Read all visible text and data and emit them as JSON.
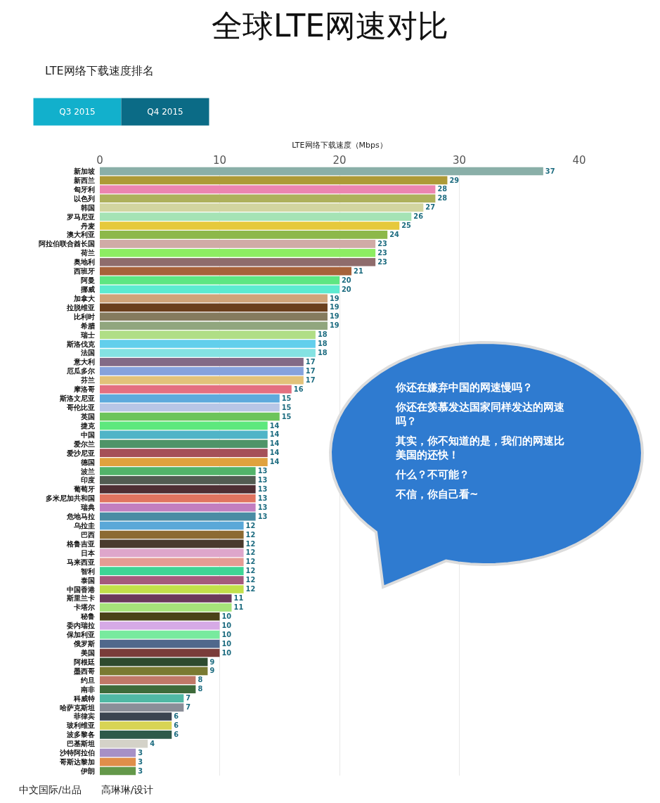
{
  "chart_data": {
    "type": "bar",
    "orientation": "horizontal",
    "title": "全球LTE网速对比",
    "subtitle": "LTE网络下载速度排名",
    "xlabel": "LTE网络下载速度（Mbps）",
    "categories": [
      "新加坡",
      "新西兰",
      "匈牙利",
      "以色列",
      "韩国",
      "罗马尼亚",
      "丹麦",
      "澳大利亚",
      "阿拉伯联合酋长国",
      "荷兰",
      "奥地利",
      "西班牙",
      "阿曼",
      "挪威",
      "加拿大",
      "拉脱维亚",
      "比利时",
      "希腊",
      "瑞士",
      "斯洛伐克",
      "法国",
      "意大利",
      "厄瓜多尔",
      "芬兰",
      "摩洛哥",
      "斯洛文尼亚",
      "哥伦比亚",
      "英国",
      "捷克",
      "中国",
      "爱尔兰",
      "爱沙尼亚",
      "德国",
      "波兰",
      "印度",
      "葡萄牙",
      "多米尼加共和国",
      "瑞典",
      "危地马拉",
      "乌拉圭",
      "巴西",
      "格鲁吉亚",
      "日本",
      "马来西亚",
      "智利",
      "泰国",
      "中国香港",
      "斯里兰卡",
      "卡塔尔",
      "秘鲁",
      "委内瑞拉",
      "保加利亚",
      "俄罗斯",
      "美国",
      "阿根廷",
      "墨西哥",
      "约旦",
      "南非",
      "科威特",
      "哈萨克斯坦",
      "菲律宾",
      "玻利维亚",
      "波多黎各",
      "巴基斯坦",
      "沙特阿拉伯",
      "哥斯达黎加",
      "伊朗"
    ],
    "values": [
      37,
      29,
      28,
      28,
      27,
      26,
      25,
      24,
      23,
      23,
      23,
      21,
      20,
      20,
      19,
      19,
      19,
      19,
      18,
      18,
      18,
      17,
      17,
      17,
      16,
      15,
      15,
      15,
      14,
      14,
      14,
      14,
      14,
      13,
      13,
      13,
      13,
      13,
      13,
      12,
      12,
      12,
      12,
      12,
      12,
      12,
      12,
      11,
      11,
      10,
      10,
      10,
      10,
      10,
      9,
      9,
      8,
      8,
      7,
      7,
      6,
      6,
      6,
      4,
      3,
      3,
      3
    ],
    "colors": [
      "#8aafa8",
      "#ad9a37",
      "#ec85b0",
      "#aeb15c",
      "#d2d5a0",
      "#a5e3b5",
      "#e6c93c",
      "#8db84a",
      "#d0aba6",
      "#8ded62",
      "#8f6c6c",
      "#a7623a",
      "#5de682",
      "#5cebd0",
      "#d0a47a",
      "#6b3f1d",
      "#857b5e",
      "#91a67e",
      "#b0de86",
      "#62cfec",
      "#84e2e2",
      "#836a86",
      "#86a2dc",
      "#e2c27a",
      "#e46f80",
      "#5eaadc",
      "#b8c6e6",
      "#6cc45a",
      "#5de87d",
      "#50b4c7",
      "#4f9468",
      "#a55058",
      "#e0a23e",
      "#52b36a",
      "#525c52",
      "#4e2f34",
      "#e07460",
      "#c27ec0",
      "#4a8ca4",
      "#5aa8d8",
      "#8c6a32",
      "#4a3a2e",
      "#dea6cb",
      "#e59c94",
      "#3ed595",
      "#a45a7c",
      "#c2e04a",
      "#6a3a5a",
      "#a6e37a",
      "#4a4218",
      "#d6aae6",
      "#78ea9e",
      "#50688c",
      "#7a3c3a",
      "#2e4a2e",
      "#7a7a32",
      "#c07868",
      "#3e6a3a",
      "#50b8a4",
      "#8a8e98",
      "#3a4450",
      "#d8d454",
      "#2e5a4a",
      "#d4d2c8",
      "#a690c6",
      "#e08e4a",
      "#64984a"
    ],
    "xlim": [
      0,
      40
    ],
    "xticks": [
      0,
      10,
      20,
      30,
      40
    ],
    "grid": "x",
    "data_labels": true,
    "annotations": [
      "Q3 2015",
      "Q4 2015",
      "你还在嫌弃中国的网速慢吗？",
      "你还在羡慕发达国家同样发达的网速吗？",
      "其实，你不知道的是，我们的网速比美国的还快！",
      "什么？不可能？",
      "不信，你自己看~",
      "中文国际/出品　　高琳琳/设计"
    ]
  }
}
